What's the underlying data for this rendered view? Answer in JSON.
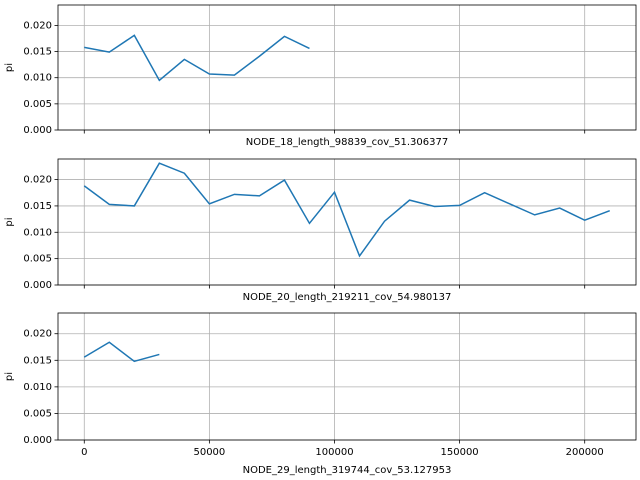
{
  "chart_data": [
    {
      "type": "line",
      "y_label": "pi",
      "x_label": "NODE_18_length_98839_cov_51.306377",
      "x": [
        0,
        10000,
        20000,
        30000,
        40000,
        50000,
        60000,
        70000,
        80000,
        90000
      ],
      "series": [
        {
          "color": "#1f77b4",
          "values": [
            0.0158,
            0.0149,
            0.0181,
            0.0095,
            0.0135,
            0.0107,
            0.0105,
            0.0141,
            0.0179,
            0.0156
          ]
        }
      ],
      "xlim": [
        -10500,
        220500
      ],
      "xticks": [
        0,
        50000,
        100000,
        150000,
        200000
      ],
      "show_xtick_labels": false,
      "ylim": [
        0,
        0.0239
      ],
      "yticks": [
        {
          "value": 0,
          "label": "0.000"
        },
        {
          "value": 0.005,
          "label": "0.005"
        },
        {
          "value": 0.01,
          "label": "0.010"
        },
        {
          "value": 0.015,
          "label": "0.015"
        },
        {
          "value": 0.02,
          "label": "0.020"
        }
      ],
      "grid": true
    },
    {
      "type": "line",
      "y_label": "pi",
      "x_label": "NODE_20_length_219211_cov_54.980137",
      "x": [
        0,
        10000,
        20000,
        30000,
        40000,
        50000,
        60000,
        70000,
        80000,
        90000,
        100000,
        110000,
        120000,
        130000,
        140000,
        150000,
        160000,
        170000,
        180000,
        190000,
        200000,
        210000
      ],
      "series": [
        {
          "color": "#1f77b4",
          "values": [
            0.0188,
            0.0153,
            0.015,
            0.0231,
            0.0212,
            0.0154,
            0.0172,
            0.0169,
            0.0199,
            0.0117,
            0.0176,
            0.0055,
            0.0121,
            0.0161,
            0.0149,
            0.0151,
            0.0175,
            0.0154,
            0.0133,
            0.0146,
            0.0123,
            0.0141
          ]
        }
      ],
      "xlim": [
        -10500,
        220500
      ],
      "xticks": [
        0,
        50000,
        100000,
        150000,
        200000
      ],
      "show_xtick_labels": false,
      "ylim": [
        0,
        0.0239
      ],
      "yticks": [
        {
          "value": 0,
          "label": "0.000"
        },
        {
          "value": 0.005,
          "label": "0.005"
        },
        {
          "value": 0.01,
          "label": "0.010"
        },
        {
          "value": 0.015,
          "label": "0.015"
        },
        {
          "value": 0.02,
          "label": "0.020"
        }
      ],
      "grid": true
    },
    {
      "type": "line",
      "y_label": "pi",
      "x_label": "NODE_29_length_319744_cov_53.127953",
      "x": [
        0,
        10000,
        20000,
        30000
      ],
      "series": [
        {
          "color": "#1f77b4",
          "values": [
            0.0156,
            0.0184,
            0.0148,
            0.0161
          ]
        }
      ],
      "xlim": [
        -10500,
        220500
      ],
      "xticks": [
        0,
        50000,
        100000,
        150000,
        200000
      ],
      "show_xtick_labels": true,
      "ylim": [
        0,
        0.0239
      ],
      "yticks": [
        {
          "value": 0,
          "label": "0.000"
        },
        {
          "value": 0.005,
          "label": "0.005"
        },
        {
          "value": 0.01,
          "label": "0.010"
        },
        {
          "value": 0.015,
          "label": "0.015"
        },
        {
          "value": 0.02,
          "label": "0.020"
        }
      ],
      "grid": true
    }
  ]
}
